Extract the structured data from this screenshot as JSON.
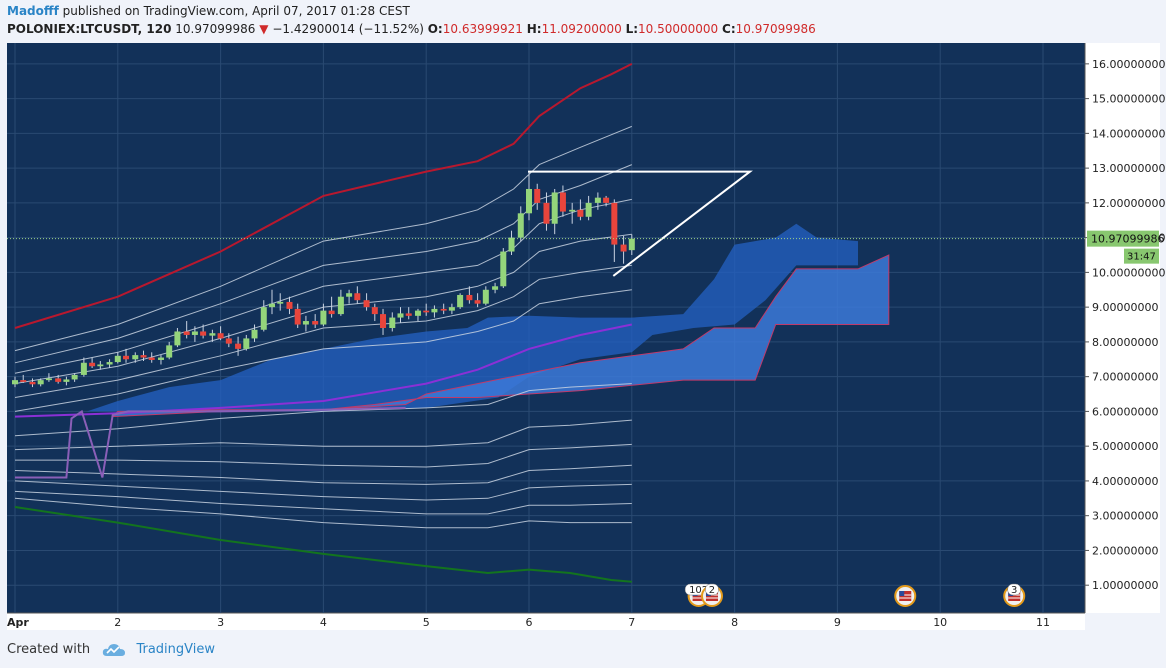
{
  "header": {
    "author": "Madofff",
    "published_text": "published on TradingView.com, April 07, 2017 01:28 CEST",
    "symbol": "POLONIEX:LTCUSDT, 120",
    "last_price": "10.97099986",
    "change": "−1.42900014 (−11.52%)",
    "open_label": "O:",
    "open": "10.63999921",
    "high_label": "H:",
    "high": "11.09200000",
    "low_label": "L:",
    "low": "10.50000000",
    "close_label": "C:",
    "close": "10.97099986"
  },
  "footer": {
    "created_with": "Created with",
    "brand": "TradingView"
  },
  "colors": {
    "background": "#123159",
    "bullish": "#94d57b",
    "bearish": "#e8453c",
    "upper_band": "#b8182e",
    "lower_band": "#13741e",
    "cloud": "#3c79d8",
    "baseline": "#8b30d6",
    "axis_bg": "#ffffff",
    "price_tag": "#88c76f"
  },
  "chart_data": {
    "type": "candlestick",
    "symbol": "POLONIEX:LTCUSDT",
    "interval": "120",
    "x_ticks": [
      "Apr",
      "2",
      "3",
      "4",
      "5",
      "6",
      "7",
      "8",
      "9",
      "10",
      "11"
    ],
    "y_ticks": [
      "1.00000000",
      "2.00000000",
      "3.00000000",
      "4.00000000",
      "5.00000000",
      "6.00000000",
      "7.00000000",
      "8.00000000",
      "9.00000000",
      "10.00000000",
      "11.00000000",
      "12.00000000",
      "13.00000000",
      "14.00000000",
      "15.00000000",
      "16.00000000"
    ],
    "ylim": [
      0.2,
      16.6
    ],
    "xlim": [
      0.92,
      11.43
    ],
    "current_price": {
      "value": 10.97099986,
      "label": "10.97099986",
      "countdown": "31:47"
    },
    "candles": [
      [
        1.0,
        6.78,
        7.0,
        6.7,
        6.9
      ],
      [
        1.08,
        6.9,
        7.05,
        6.82,
        6.85
      ],
      [
        1.17,
        6.85,
        6.95,
        6.7,
        6.78
      ],
      [
        1.25,
        6.78,
        6.95,
        6.72,
        6.9
      ],
      [
        1.33,
        6.9,
        7.1,
        6.85,
        6.95
      ],
      [
        1.42,
        6.95,
        7.05,
        6.8,
        6.85
      ],
      [
        1.5,
        6.85,
        7.0,
        6.75,
        6.92
      ],
      [
        1.58,
        6.92,
        7.1,
        6.85,
        7.05
      ],
      [
        1.67,
        7.05,
        7.55,
        7.0,
        7.4
      ],
      [
        1.75,
        7.4,
        7.55,
        7.25,
        7.3
      ],
      [
        1.83,
        7.3,
        7.45,
        7.2,
        7.35
      ],
      [
        1.92,
        7.35,
        7.5,
        7.25,
        7.42
      ],
      [
        2.0,
        7.42,
        7.7,
        7.38,
        7.6
      ],
      [
        2.08,
        7.6,
        7.8,
        7.4,
        7.5
      ],
      [
        2.17,
        7.5,
        7.7,
        7.4,
        7.62
      ],
      [
        2.25,
        7.62,
        7.75,
        7.45,
        7.55
      ],
      [
        2.33,
        7.55,
        7.7,
        7.4,
        7.48
      ],
      [
        2.42,
        7.48,
        7.62,
        7.35,
        7.55
      ],
      [
        2.5,
        7.55,
        8.0,
        7.5,
        7.9
      ],
      [
        2.58,
        7.9,
        8.4,
        7.85,
        8.3
      ],
      [
        2.67,
        8.3,
        8.6,
        8.1,
        8.2
      ],
      [
        2.75,
        8.2,
        8.45,
        8.0,
        8.3
      ],
      [
        2.83,
        8.3,
        8.5,
        8.1,
        8.18
      ],
      [
        2.92,
        8.18,
        8.35,
        8.0,
        8.25
      ],
      [
        3.0,
        8.25,
        8.45,
        8.05,
        8.1
      ],
      [
        3.08,
        8.1,
        8.25,
        7.85,
        7.95
      ],
      [
        3.17,
        7.95,
        8.15,
        7.6,
        7.8
      ],
      [
        3.25,
        7.8,
        8.2,
        7.75,
        8.1
      ],
      [
        3.33,
        8.1,
        8.5,
        8.0,
        8.35
      ],
      [
        3.42,
        8.35,
        9.2,
        8.3,
        9.0
      ],
      [
        3.5,
        9.0,
        9.5,
        8.8,
        9.1
      ],
      [
        3.58,
        9.1,
        9.4,
        8.9,
        9.15
      ],
      [
        3.67,
        9.15,
        9.3,
        8.8,
        8.95
      ],
      [
        3.75,
        8.95,
        9.1,
        8.4,
        8.5
      ],
      [
        3.83,
        8.5,
        8.75,
        8.3,
        8.6
      ],
      [
        3.92,
        8.6,
        8.8,
        8.4,
        8.5
      ],
      [
        4.0,
        8.5,
        9.1,
        8.45,
        8.9
      ],
      [
        4.08,
        8.9,
        9.3,
        8.7,
        8.8
      ],
      [
        4.17,
        8.8,
        9.5,
        8.75,
        9.3
      ],
      [
        4.25,
        9.3,
        9.5,
        9.1,
        9.4
      ],
      [
        4.33,
        9.4,
        9.6,
        9.1,
        9.2
      ],
      [
        4.42,
        9.2,
        9.4,
        8.9,
        9.0
      ],
      [
        4.5,
        9.0,
        9.1,
        8.6,
        8.8
      ],
      [
        4.58,
        8.8,
        8.95,
        8.2,
        8.4
      ],
      [
        4.67,
        8.4,
        8.85,
        8.3,
        8.7
      ],
      [
        4.75,
        8.7,
        9.0,
        8.55,
        8.82
      ],
      [
        4.83,
        8.82,
        9.0,
        8.65,
        8.75
      ],
      [
        4.92,
        8.75,
        8.95,
        8.6,
        8.9
      ],
      [
        5.0,
        8.9,
        9.1,
        8.75,
        8.85
      ],
      [
        5.08,
        8.85,
        9.05,
        8.7,
        8.95
      ],
      [
        5.17,
        8.95,
        9.1,
        8.8,
        8.9
      ],
      [
        5.25,
        8.9,
        9.1,
        8.8,
        9.0
      ],
      [
        5.33,
        9.0,
        9.4,
        8.95,
        9.35
      ],
      [
        5.42,
        9.35,
        9.6,
        9.1,
        9.2
      ],
      [
        5.5,
        9.2,
        9.4,
        9.0,
        9.1
      ],
      [
        5.58,
        9.1,
        9.6,
        9.05,
        9.5
      ],
      [
        5.67,
        9.5,
        9.7,
        9.4,
        9.6
      ],
      [
        5.75,
        9.6,
        10.7,
        9.55,
        10.6
      ],
      [
        5.83,
        10.6,
        11.2,
        10.5,
        11.0
      ],
      [
        5.92,
        11.0,
        11.9,
        10.9,
        11.7
      ],
      [
        6.0,
        11.7,
        12.9,
        11.5,
        12.4
      ],
      [
        6.08,
        12.4,
        12.55,
        11.8,
        12.0
      ],
      [
        6.17,
        12.0,
        12.3,
        11.2,
        11.4
      ],
      [
        6.25,
        11.4,
        12.4,
        11.1,
        12.3
      ],
      [
        6.33,
        12.3,
        12.5,
        11.6,
        11.75
      ],
      [
        6.42,
        11.75,
        12.0,
        11.4,
        11.8
      ],
      [
        6.5,
        11.8,
        12.1,
        11.5,
        11.6
      ],
      [
        6.58,
        11.6,
        12.2,
        11.5,
        12.0
      ],
      [
        6.67,
        12.0,
        12.3,
        11.8,
        12.15
      ],
      [
        6.75,
        12.15,
        12.2,
        11.9,
        12.0
      ],
      [
        6.83,
        12.0,
        12.1,
        10.3,
        10.8
      ],
      [
        6.92,
        10.8,
        11.05,
        10.25,
        10.6
      ],
      [
        7.0,
        10.64,
        11.09,
        10.5,
        10.97
      ]
    ],
    "upper_band": [
      [
        1.0,
        8.4
      ],
      [
        2.0,
        9.3
      ],
      [
        3.0,
        10.6
      ],
      [
        4.0,
        12.2
      ],
      [
        5.0,
        12.9
      ],
      [
        5.5,
        13.2
      ],
      [
        5.85,
        13.7
      ],
      [
        6.1,
        14.5
      ],
      [
        6.5,
        15.3
      ],
      [
        6.8,
        15.7
      ],
      [
        7.0,
        16.0
      ]
    ],
    "lower_band": [
      [
        1.0,
        3.25
      ],
      [
        2.0,
        2.8
      ],
      [
        3.0,
        2.3
      ],
      [
        4.0,
        1.9
      ],
      [
        5.0,
        1.55
      ],
      [
        5.6,
        1.35
      ],
      [
        6.0,
        1.45
      ],
      [
        6.4,
        1.35
      ],
      [
        6.8,
        1.15
      ],
      [
        7.0,
        1.1
      ]
    ],
    "upper_bands": [
      [
        [
          1.0,
          7.75
        ],
        [
          2.0,
          8.5
        ],
        [
          3.0,
          9.6
        ],
        [
          4.0,
          10.9
        ],
        [
          5.0,
          11.4
        ],
        [
          5.5,
          11.8
        ],
        [
          5.85,
          12.4
        ],
        [
          6.1,
          13.1
        ],
        [
          6.5,
          13.6
        ],
        [
          7.0,
          14.2
        ]
      ],
      [
        [
          1.0,
          7.4
        ],
        [
          2.0,
          8.1
        ],
        [
          3.0,
          9.1
        ],
        [
          4.0,
          10.2
        ],
        [
          5.0,
          10.6
        ],
        [
          5.5,
          10.9
        ],
        [
          5.85,
          11.4
        ],
        [
          6.1,
          12.1
        ],
        [
          6.5,
          12.5
        ],
        [
          7.0,
          13.1
        ]
      ],
      [
        [
          1.0,
          7.1
        ],
        [
          2.0,
          7.7
        ],
        [
          3.0,
          8.6
        ],
        [
          4.0,
          9.6
        ],
        [
          5.0,
          10.0
        ],
        [
          5.5,
          10.2
        ],
        [
          5.85,
          10.7
        ],
        [
          6.1,
          11.4
        ],
        [
          6.5,
          11.8
        ],
        [
          7.0,
          12.1
        ]
      ],
      [
        [
          1.0,
          6.8
        ],
        [
          2.0,
          7.3
        ],
        [
          3.0,
          8.1
        ],
        [
          4.0,
          9.0
        ],
        [
          5.0,
          9.3
        ],
        [
          5.5,
          9.6
        ],
        [
          5.85,
          10.0
        ],
        [
          6.1,
          10.6
        ],
        [
          6.5,
          10.9
        ],
        [
          7.0,
          11.1
        ]
      ],
      [
        [
          1.0,
          6.4
        ],
        [
          2.0,
          6.9
        ],
        [
          3.0,
          7.6
        ],
        [
          4.0,
          8.4
        ],
        [
          5.0,
          8.6
        ],
        [
          5.5,
          8.9
        ],
        [
          5.85,
          9.3
        ],
        [
          6.1,
          9.8
        ],
        [
          6.5,
          10.0
        ],
        [
          7.0,
          10.2
        ]
      ],
      [
        [
          1.0,
          6.0
        ],
        [
          2.0,
          6.5
        ],
        [
          3.0,
          7.2
        ],
        [
          4.0,
          7.8
        ],
        [
          5.0,
          8.0
        ],
        [
          5.5,
          8.3
        ],
        [
          5.85,
          8.6
        ],
        [
          6.1,
          9.1
        ],
        [
          6.5,
          9.3
        ],
        [
          7.0,
          9.5
        ]
      ]
    ],
    "lower_bands": [
      [
        [
          1.0,
          5.3
        ],
        [
          2.0,
          5.5
        ],
        [
          3.0,
          5.8
        ],
        [
          4.0,
          6.0
        ],
        [
          5.0,
          6.1
        ],
        [
          5.6,
          6.2
        ],
        [
          6.0,
          6.6
        ],
        [
          6.4,
          6.7
        ],
        [
          7.0,
          6.8
        ]
      ],
      [
        [
          1.0,
          4.9
        ],
        [
          2.0,
          5.0
        ],
        [
          3.0,
          5.1
        ],
        [
          4.0,
          5.0
        ],
        [
          5.0,
          5.0
        ],
        [
          5.6,
          5.1
        ],
        [
          6.0,
          5.55
        ],
        [
          6.4,
          5.6
        ],
        [
          7.0,
          5.75
        ]
      ],
      [
        [
          1.0,
          4.6
        ],
        [
          2.0,
          4.6
        ],
        [
          3.0,
          4.55
        ],
        [
          4.0,
          4.45
        ],
        [
          5.0,
          4.4
        ],
        [
          5.6,
          4.5
        ],
        [
          6.0,
          4.9
        ],
        [
          6.4,
          4.95
        ],
        [
          7.0,
          5.05
        ]
      ],
      [
        [
          1.0,
          4.3
        ],
        [
          2.0,
          4.2
        ],
        [
          3.0,
          4.1
        ],
        [
          4.0,
          3.95
        ],
        [
          5.0,
          3.9
        ],
        [
          5.6,
          3.95
        ],
        [
          6.0,
          4.3
        ],
        [
          6.4,
          4.35
        ],
        [
          7.0,
          4.45
        ]
      ],
      [
        [
          1.0,
          4.0
        ],
        [
          2.0,
          3.85
        ],
        [
          3.0,
          3.7
        ],
        [
          4.0,
          3.55
        ],
        [
          5.0,
          3.45
        ],
        [
          5.6,
          3.5
        ],
        [
          6.0,
          3.8
        ],
        [
          6.4,
          3.85
        ],
        [
          7.0,
          3.9
        ]
      ],
      [
        [
          1.0,
          3.7
        ],
        [
          2.0,
          3.55
        ],
        [
          3.0,
          3.35
        ],
        [
          4.0,
          3.2
        ],
        [
          5.0,
          3.05
        ],
        [
          5.6,
          3.05
        ],
        [
          6.0,
          3.3
        ],
        [
          6.4,
          3.3
        ],
        [
          7.0,
          3.35
        ]
      ],
      [
        [
          1.0,
          3.5
        ],
        [
          2.0,
          3.25
        ],
        [
          3.0,
          3.05
        ],
        [
          4.0,
          2.8
        ],
        [
          5.0,
          2.65
        ],
        [
          5.6,
          2.65
        ],
        [
          6.0,
          2.85
        ],
        [
          6.4,
          2.8
        ],
        [
          7.0,
          2.8
        ]
      ]
    ],
    "baseline": [
      [
        1.0,
        5.85
      ],
      [
        2.0,
        5.95
      ],
      [
        3.0,
        6.1
      ],
      [
        4.0,
        6.3
      ],
      [
        5.0,
        6.8
      ],
      [
        5.5,
        7.2
      ],
      [
        6.0,
        7.8
      ],
      [
        6.5,
        8.2
      ],
      [
        7.0,
        8.5
      ]
    ],
    "lagging_line": [
      [
        1.0,
        4.1
      ],
      [
        1.5,
        4.1
      ],
      [
        1.55,
        5.8
      ],
      [
        1.65,
        6.0
      ],
      [
        1.85,
        4.1
      ],
      [
        1.95,
        5.9
      ],
      [
        2.1,
        6.0
      ],
      [
        3.0,
        6.0
      ],
      [
        4.0,
        6.05
      ],
      [
        4.8,
        6.1
      ]
    ],
    "cloud_back": [
      [
        1.7,
        6.0
      ],
      [
        2.0,
        6.3
      ],
      [
        2.5,
        6.7
      ],
      [
        3.0,
        6.9
      ],
      [
        3.5,
        7.5
      ],
      [
        4.0,
        7.8
      ],
      [
        4.5,
        8.1
      ],
      [
        5.0,
        8.3
      ],
      [
        5.4,
        8.4
      ],
      [
        5.6,
        8.7
      ],
      [
        6.0,
        8.75
      ],
      [
        6.5,
        8.7
      ],
      [
        7.0,
        8.7
      ],
      [
        7.5,
        8.8
      ],
      [
        7.8,
        9.8
      ],
      [
        8.0,
        10.8
      ],
      [
        8.2,
        10.9
      ],
      [
        8.4,
        11.0
      ],
      [
        8.6,
        11.4
      ],
      [
        8.8,
        11.0
      ],
      [
        9.2,
        10.9
      ],
      [
        9.2,
        10.2
      ],
      [
        8.6,
        10.2
      ],
      [
        8.3,
        9.2
      ],
      [
        8.0,
        8.5
      ],
      [
        7.6,
        8.4
      ],
      [
        7.2,
        8.2
      ],
      [
        7.0,
        7.7
      ],
      [
        6.5,
        7.5
      ],
      [
        6.0,
        7.0
      ],
      [
        5.7,
        6.4
      ],
      [
        5.0,
        6.1
      ],
      [
        4.0,
        6.0
      ],
      [
        3.0,
        6.0
      ],
      [
        1.7,
        6.0
      ]
    ],
    "cloud_front": [
      [
        1.95,
        5.85
      ],
      [
        2.0,
        6.0
      ],
      [
        3.0,
        6.05
      ],
      [
        4.0,
        6.05
      ],
      [
        4.8,
        6.2
      ],
      [
        5.0,
        6.5
      ],
      [
        5.5,
        6.8
      ],
      [
        6.0,
        7.1
      ],
      [
        6.5,
        7.4
      ],
      [
        7.0,
        7.6
      ],
      [
        7.5,
        7.8
      ],
      [
        7.8,
        8.4
      ],
      [
        8.2,
        8.4
      ],
      [
        8.4,
        9.3
      ],
      [
        8.6,
        10.1
      ],
      [
        9.2,
        10.1
      ],
      [
        9.5,
        10.5
      ],
      [
        9.5,
        8.5
      ],
      [
        8.4,
        8.5
      ],
      [
        8.2,
        6.9
      ],
      [
        7.5,
        6.9
      ],
      [
        7.0,
        6.75
      ],
      [
        6.5,
        6.6
      ],
      [
        6.0,
        6.5
      ],
      [
        5.5,
        6.4
      ],
      [
        5.0,
        6.4
      ],
      [
        4.5,
        6.2
      ],
      [
        4.0,
        6.05
      ],
      [
        3.0,
        6.0
      ],
      [
        1.95,
        5.85
      ]
    ],
    "annotations": {
      "triangle": [
        [
          5.99,
          12.9
        ],
        [
          8.15,
          12.9
        ],
        [
          6.82,
          9.9
        ]
      ]
    },
    "event_markers": [
      {
        "x": 7.65,
        "label": "102"
      },
      {
        "x": 7.78,
        "label": "2"
      },
      {
        "x": 9.66,
        "label": ""
      },
      {
        "x": 10.72,
        "label": "3"
      }
    ]
  }
}
